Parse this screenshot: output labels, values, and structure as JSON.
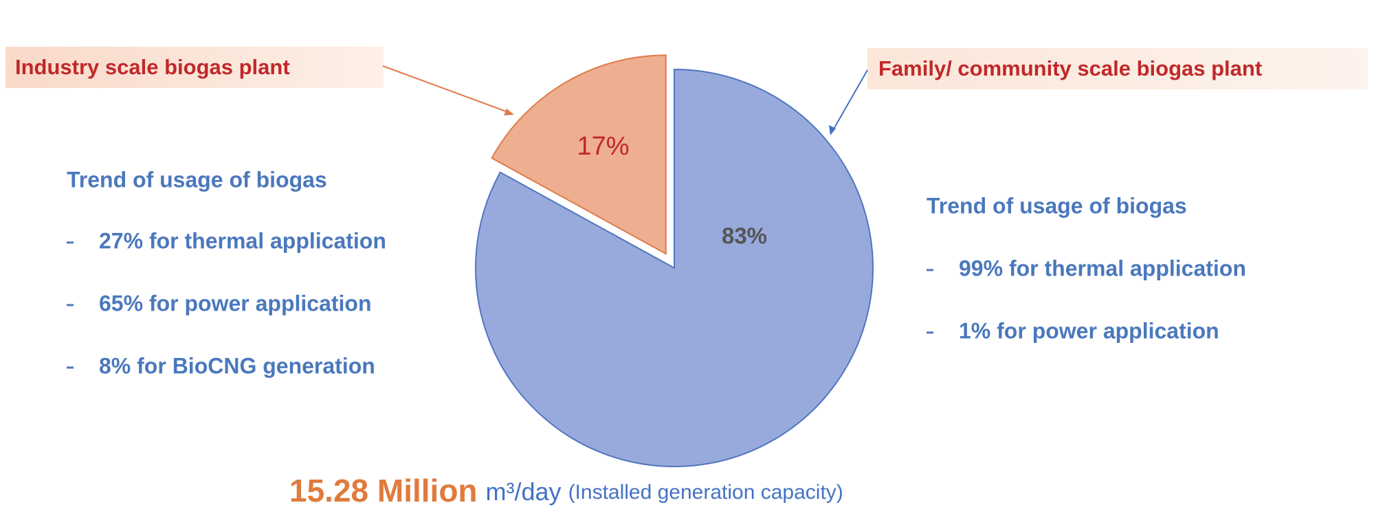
{
  "chart_data": {
    "type": "pie",
    "categories": [
      "Industry scale biogas plant",
      "Family/ community scale biogas plant"
    ],
    "values": [
      17,
      83
    ],
    "value_labels": [
      "17%",
      "83%"
    ],
    "colors": [
      "#eeae90",
      "#98aadc"
    ],
    "left_panel": {
      "title": "Trend of usage of biogas",
      "items": [
        "27% for thermal application",
        "65% for power application",
        "8% for BioCNG generation"
      ]
    },
    "right_panel": {
      "title": "Trend of usage of biogas",
      "items": [
        "99% for thermal application",
        "1% for power application"
      ]
    },
    "footer": {
      "value": "15.28 Million",
      "unit": "m³/day",
      "note": "(Installed generation capacity)"
    }
  }
}
